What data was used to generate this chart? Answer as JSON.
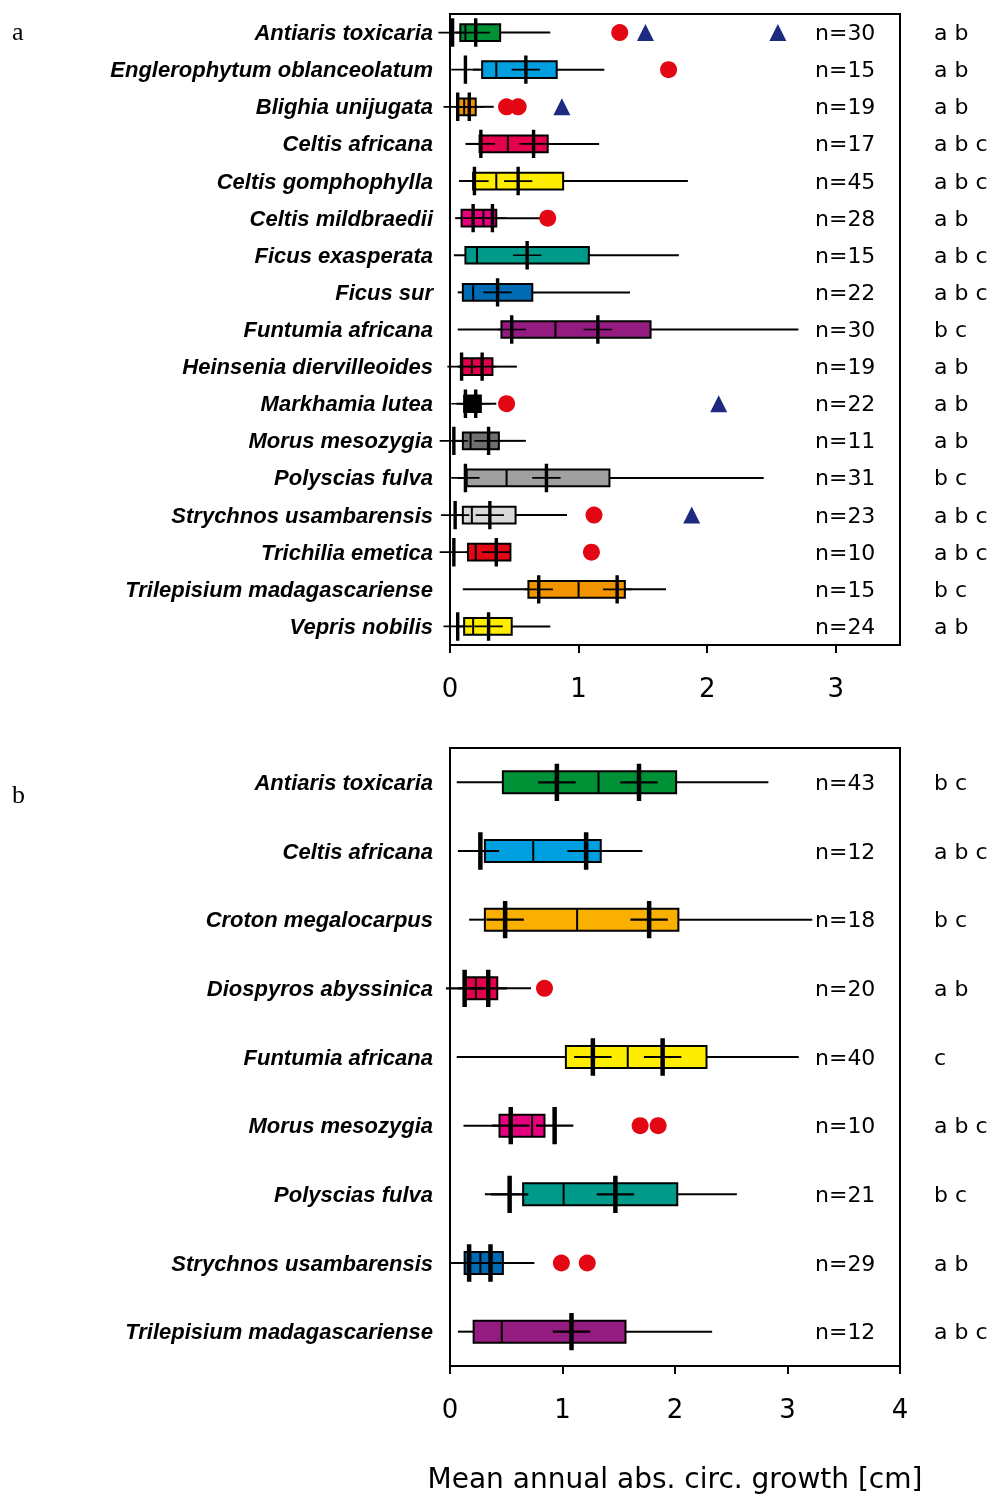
{
  "chart_data": [
    {
      "type": "box",
      "orientation": "horizontal",
      "xlim": [
        0,
        3.5
      ],
      "xticks": [
        0,
        1,
        2,
        3
      ],
      "categories": [
        "Antiaris toxicaria",
        "Englerophytum oblanceolatum",
        "Blighia unijugata",
        "Celtis africana",
        "Celtis gomphophylla",
        "Celtis mildbraedii",
        "Ficus exasperata",
        "Ficus sur",
        "Funtumia africana",
        "Heinsenia diervilleoides",
        "Markhamia lutea",
        "Morus mesozygia",
        "Polyscias fulva",
        "Strychnos usambarensis",
        "Trichilia emetica",
        "Trilepisium madagascariense",
        "Vepris nobilis"
      ],
      "colors": [
        "#009035",
        "#009fe0",
        "#f29400",
        "#e2004f",
        "#ffed00",
        "#e5007e",
        "#009a8a",
        "#006ab3",
        "#941b80",
        "#e2004f",
        "#000000",
        "#6f6f6e",
        "#a0a0a0",
        "#d9d9d9",
        "#e30613",
        "#f29400",
        "#ffed00"
      ],
      "boxes": [
        {
          "low": 0.04,
          "q1": 0.08,
          "median": 0.12,
          "q3": 0.39,
          "high": 0.78
        },
        {
          "low": 0.18,
          "q1": 0.25,
          "median": 0.36,
          "q3": 0.83,
          "high": 1.2
        },
        {
          "low": 0.05,
          "q1": 0.06,
          "median": 0.11,
          "q3": 0.2,
          "high": 0.34
        },
        {
          "low": 0.12,
          "q1": 0.23,
          "median": 0.45,
          "q3": 0.76,
          "high": 1.16
        },
        {
          "low": 0.07,
          "q1": 0.18,
          "median": 0.36,
          "q3": 0.88,
          "high": 1.85
        },
        {
          "low": 0.04,
          "q1": 0.09,
          "median": 0.26,
          "q3": 0.36,
          "high": 0.7
        },
        {
          "low": 0.03,
          "q1": 0.12,
          "median": 0.21,
          "q3": 1.08,
          "high": 1.78
        },
        {
          "low": 0.06,
          "q1": 0.1,
          "median": 0.18,
          "q3": 0.64,
          "high": 1.4
        },
        {
          "low": 0.06,
          "q1": 0.4,
          "median": 0.82,
          "q3": 1.56,
          "high": 2.71
        },
        {
          "low": 0.06,
          "q1": 0.09,
          "median": 0.17,
          "q3": 0.33,
          "high": 0.52
        },
        {
          "low": 0.05,
          "q1": 0.11,
          "median": 0.16,
          "q3": 0.24,
          "high": 0.36
        },
        {
          "low": 0.03,
          "q1": 0.1,
          "median": 0.16,
          "q3": 0.38,
          "high": 0.59
        },
        {
          "low": 0.06,
          "q1": 0.13,
          "median": 0.44,
          "q3": 1.24,
          "high": 2.44
        },
        {
          "low": 0.04,
          "q1": 0.1,
          "median": 0.17,
          "q3": 0.51,
          "high": 0.91
        },
        {
          "low": 0.12,
          "q1": 0.14,
          "median": 0.2,
          "q3": 0.47,
          "high": 0.47
        },
        {
          "low": 0.1,
          "q1": 0.61,
          "median": 1.0,
          "q3": 1.36,
          "high": 1.68
        },
        {
          "low": 0.06,
          "q1": 0.11,
          "median": 0.18,
          "q3": 0.48,
          "high": 0.78
        }
      ],
      "series": [
        {
          "type": "scatter",
          "marker": "cross",
          "color": "#000000",
          "x": [
            "Antiaris toxicaria",
            "Antiaris toxicaria",
            "Englerophytum oblanceolatum",
            "Englerophytum oblanceolatum",
            "Blighia unijugata",
            "Blighia unijugata",
            "Celtis africana",
            "Celtis africana",
            "Celtis gomphophylla",
            "Celtis gomphophylla",
            "Celtis mildbraedii",
            "Celtis mildbraedii",
            "Ficus exasperata",
            "Ficus sur",
            "Funtumia africana",
            "Funtumia africana",
            "Heinsenia diervilleoides",
            "Heinsenia diervilleoides",
            "Markhamia lutea",
            "Markhamia lutea",
            "Morus mesozygia",
            "Morus mesozygia",
            "Polyscias fulva",
            "Polyscias fulva",
            "Strychnos usambarensis",
            "Strychnos usambarensis",
            "Trichilia emetica",
            "Trichilia emetica",
            "Trilepisium madagascariense",
            "Trilepisium madagascariense",
            "Vepris nobilis",
            "Vepris nobilis"
          ],
          "values": [
            0.02,
            0.2,
            0.12,
            0.59,
            0.06,
            0.15,
            0.24,
            0.65,
            0.19,
            0.53,
            0.18,
            0.33,
            0.6,
            0.37,
            0.48,
            1.15,
            0.09,
            0.25,
            0.12,
            0.2,
            0.03,
            0.3,
            0.12,
            0.75,
            0.04,
            0.31,
            0.03,
            0.36,
            0.69,
            1.3,
            0.06,
            0.3
          ]
        },
        {
          "type": "scatter",
          "marker": "circle",
          "color": "#e30613",
          "x": [
            "Antiaris toxicaria",
            "Englerophytum oblanceolatum",
            "Blighia unijugata",
            "Blighia unijugata",
            "Celtis mildbraedii",
            "Markhamia lutea",
            "Strychnos usambarensis",
            "Trichilia emetica"
          ],
          "values": [
            1.32,
            1.7,
            0.44,
            0.53,
            0.76,
            0.44,
            1.12,
            1.1
          ]
        },
        {
          "type": "scatter",
          "marker": "triangle",
          "color": "#1d2a80",
          "x": [
            "Antiaris toxicaria",
            "Antiaris toxicaria",
            "Blighia unijugata",
            "Markhamia lutea",
            "Strychnos usambarensis"
          ],
          "values": [
            1.52,
            2.55,
            0.87,
            2.09,
            1.88
          ]
        }
      ],
      "annotations": [
        "a",
        "n=30",
        "a b",
        "n=15",
        "a b",
        "n=19",
        "a b",
        "n=17",
        "a b c",
        "n=45",
        "a b c",
        "n=28",
        "a b",
        "n=15",
        "a b c",
        "n=22",
        "a b c",
        "n=30",
        "b c",
        "n=19",
        "a b",
        "n=22",
        "a b",
        "n=11",
        "a b",
        "n=31",
        "b c",
        "n=23",
        "a b c",
        "n=10",
        "a b c",
        "n=15",
        "b c",
        "n=24",
        "a b"
      ]
    },
    {
      "type": "box",
      "orientation": "horizontal",
      "xlim": [
        0,
        4
      ],
      "xticks": [
        0,
        1,
        2,
        3,
        4
      ],
      "xlabel": "Mean annual abs. circ. growth [cm]",
      "categories": [
        "Antiaris toxicaria",
        "Celtis africana",
        "Croton megalocarpus",
        "Diospyros abyssinica",
        "Funtumia africana",
        "Morus mesozygia",
        "Polyscias fulva",
        "Strychnos usambarensis",
        "Trilepisium madagascariense"
      ],
      "colors": [
        "#009035",
        "#009fe0",
        "#f9b000",
        "#e2004f",
        "#ffed00",
        "#e5007e",
        "#009a8a",
        "#006ab3",
        "#941b80"
      ],
      "boxes": [
        {
          "low": 0.06,
          "q1": 0.47,
          "median": 1.32,
          "q3": 2.01,
          "high": 2.83
        },
        {
          "low": 0.07,
          "q1": 0.31,
          "median": 0.74,
          "q3": 1.34,
          "high": 1.71
        },
        {
          "low": 0.17,
          "q1": 0.31,
          "median": 1.13,
          "q3": 2.03,
          "high": 3.22
        },
        {
          "low": 0.07,
          "q1": 0.14,
          "median": 0.23,
          "q3": 0.42,
          "high": 0.72
        },
        {
          "low": 0.06,
          "q1": 1.03,
          "median": 1.58,
          "q3": 2.28,
          "high": 3.1
        },
        {
          "low": 0.12,
          "q1": 0.44,
          "median": 0.73,
          "q3": 0.84,
          "high": 0.84
        },
        {
          "low": 0.31,
          "q1": 0.65,
          "median": 1.01,
          "q3": 2.02,
          "high": 2.55
        },
        {
          "low": 0.04,
          "q1": 0.13,
          "median": 0.27,
          "q3": 0.47,
          "high": 0.75
        },
        {
          "low": 0.07,
          "q1": 0.21,
          "median": 0.46,
          "q3": 1.56,
          "high": 2.33
        }
      ],
      "series": [
        {
          "type": "scatter",
          "marker": "cross",
          "color": "#000000",
          "x": [
            "Antiaris toxicaria",
            "Antiaris toxicaria",
            "Celtis africana",
            "Celtis africana",
            "Croton megalocarpus",
            "Croton megalocarpus",
            "Diospyros abyssinica",
            "Diospyros abyssinica",
            "Funtumia africana",
            "Funtumia africana",
            "Morus mesozygia",
            "Morus mesozygia",
            "Polyscias fulva",
            "Polyscias fulva",
            "Strychnos usambarensis",
            "Strychnos usambarensis",
            "Trilepisium madagascariense"
          ],
          "values": [
            0.95,
            1.68,
            0.27,
            1.21,
            0.49,
            1.77,
            0.13,
            0.34,
            1.27,
            1.89,
            0.54,
            0.93,
            0.53,
            1.47,
            0.17,
            0.36,
            1.08
          ]
        },
        {
          "type": "scatter",
          "marker": "circle",
          "color": "#e30613",
          "x": [
            "Diospyros abyssinica",
            "Morus mesozygia",
            "Morus mesozygia",
            "Strychnos usambarensis",
            "Strychnos usambarensis"
          ],
          "values": [
            0.84,
            1.69,
            1.85,
            0.99,
            1.22
          ]
        }
      ],
      "annotations": [
        "b",
        "n=43",
        "b c",
        "n=12",
        "a b c",
        "n=18",
        "b c",
        "n=20",
        "a b",
        "n=40",
        "c",
        "n=10",
        "a b c",
        "n=21",
        "b c",
        "n=29",
        "a b",
        "n=12",
        "a b c"
      ]
    }
  ]
}
